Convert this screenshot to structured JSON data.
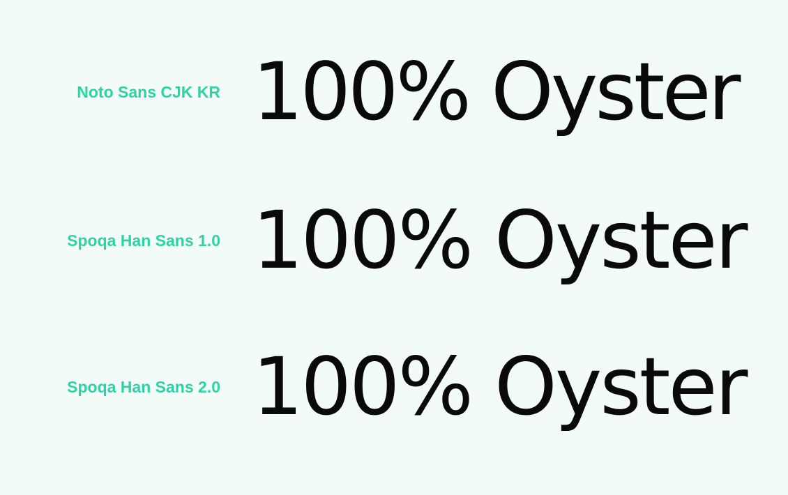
{
  "colors": {
    "background": "#f3fbf8",
    "label": "#2fd3a1",
    "specimen": "#0a0a0a"
  },
  "rows": [
    {
      "label": "Noto Sans CJK KR",
      "specimen": "100% Oyster"
    },
    {
      "label": "Spoqa Han Sans 1.0",
      "specimen": "100% Oyster"
    },
    {
      "label": "Spoqa Han Sans 2.0",
      "specimen": "100% Oyster"
    }
  ]
}
